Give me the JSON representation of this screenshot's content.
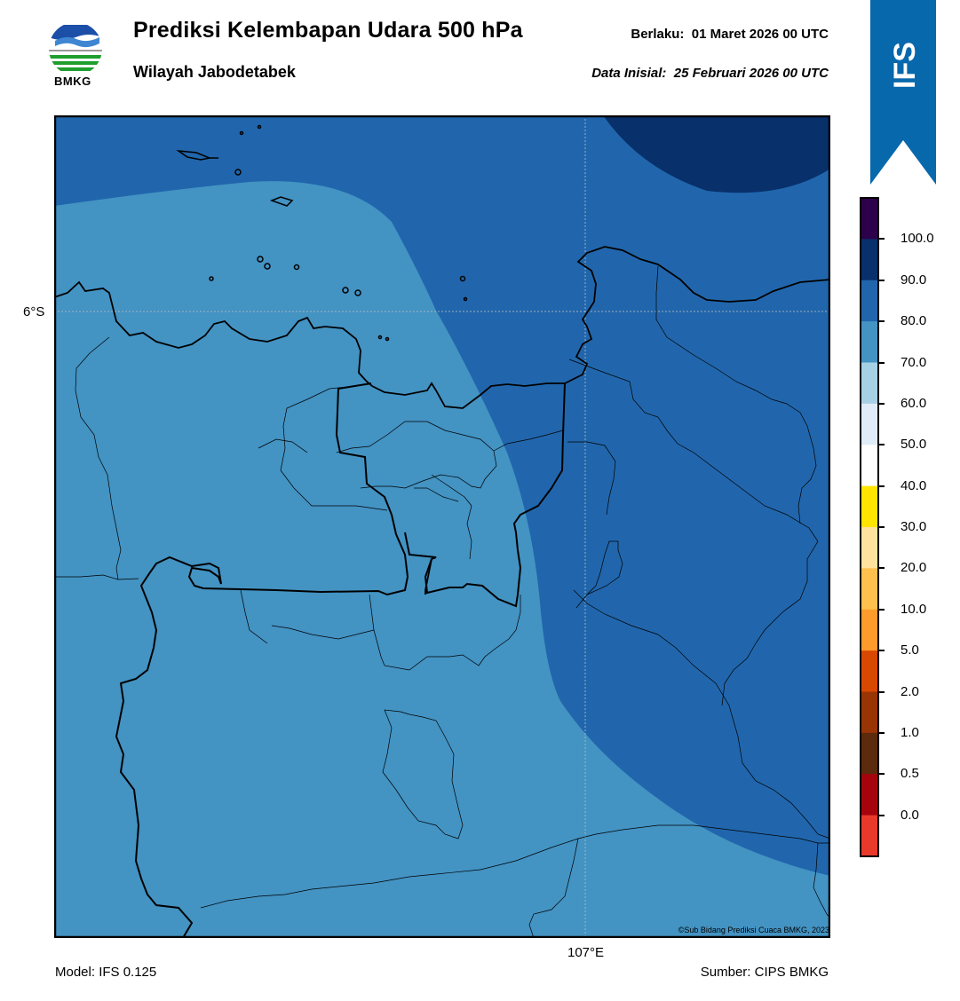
{
  "header": {
    "title": "Prediksi Kelembapan Udara 500 hPa",
    "subtitle": "Wilayah Jabodetabek",
    "valid_label": "Berlaku:",
    "valid_value": "01 Maret 2026 00 UTC",
    "init_label": "Data Inisial:",
    "init_value": "25 Februari 2026 00 UTC"
  },
  "logo": {
    "text": "BMKG",
    "icon": "bmkg-logo-icon"
  },
  "ribbon": {
    "text": "IFS",
    "color": "#0868ac"
  },
  "map": {
    "lat_label": "6°S",
    "lon_label": "107°E",
    "credit": "©Sub Bidang Prediksi Cuaca BMKG, 2023"
  },
  "colorbar": {
    "labels": [
      "100.0",
      "90.0",
      "80.0",
      "70.0",
      "60.0",
      "50.0",
      "40.0",
      "30.0",
      "20.0",
      "10.0",
      "5.0",
      "2.0",
      "1.0",
      "0.5",
      "0.0"
    ],
    "colors": [
      "#2d004b",
      "#08306b",
      "#2166ac",
      "#4393c3",
      "#a6d1e5",
      "#e0ecf7",
      "#ffffff",
      "#ffe500",
      "#ffe29e",
      "#ffc04d",
      "#fd9b2b",
      "#d94801",
      "#993404",
      "#5c2a0c",
      "#a5040c",
      "#e8392a"
    ]
  },
  "footer": {
    "model": "Model: IFS 0.125",
    "source": "Sumber: CIPS BMKG"
  }
}
